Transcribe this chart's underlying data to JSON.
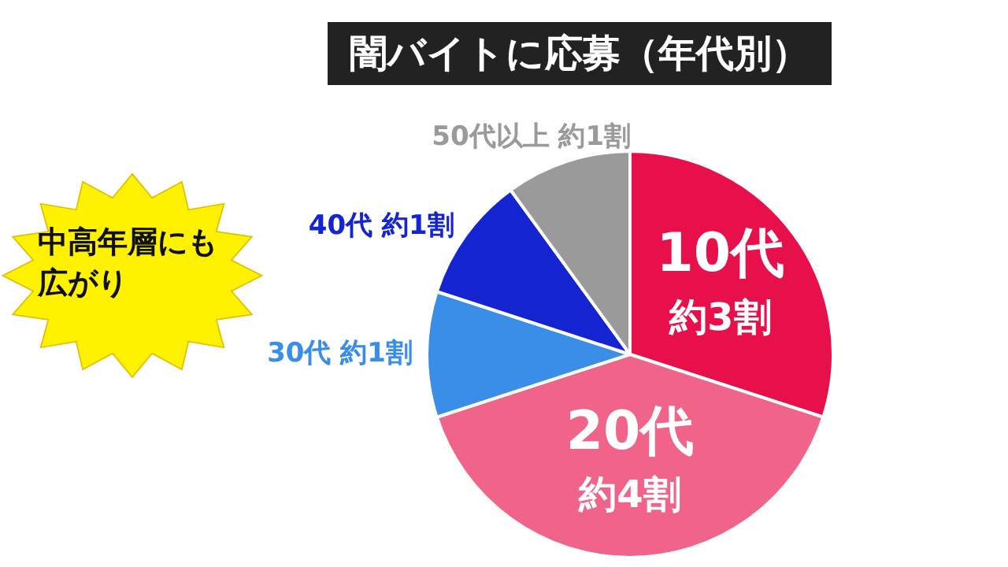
{
  "chart_data": {
    "type": "pie",
    "title": "闇バイトに応募（年代別）",
    "categories": [
      "10代",
      "20代",
      "30代",
      "40代",
      "50代以上"
    ],
    "values": [
      30,
      40,
      10,
      10,
      10
    ],
    "value_labels": [
      "約3割",
      "約4割",
      "約1割",
      "約1割",
      "約1割"
    ],
    "colors": [
      "#e8104a",
      "#f0648a",
      "#3a8ee8",
      "#1424d0",
      "#9a9a9a"
    ],
    "legend": false,
    "annotations": [
      "中高年層にも広がり"
    ]
  }
}
